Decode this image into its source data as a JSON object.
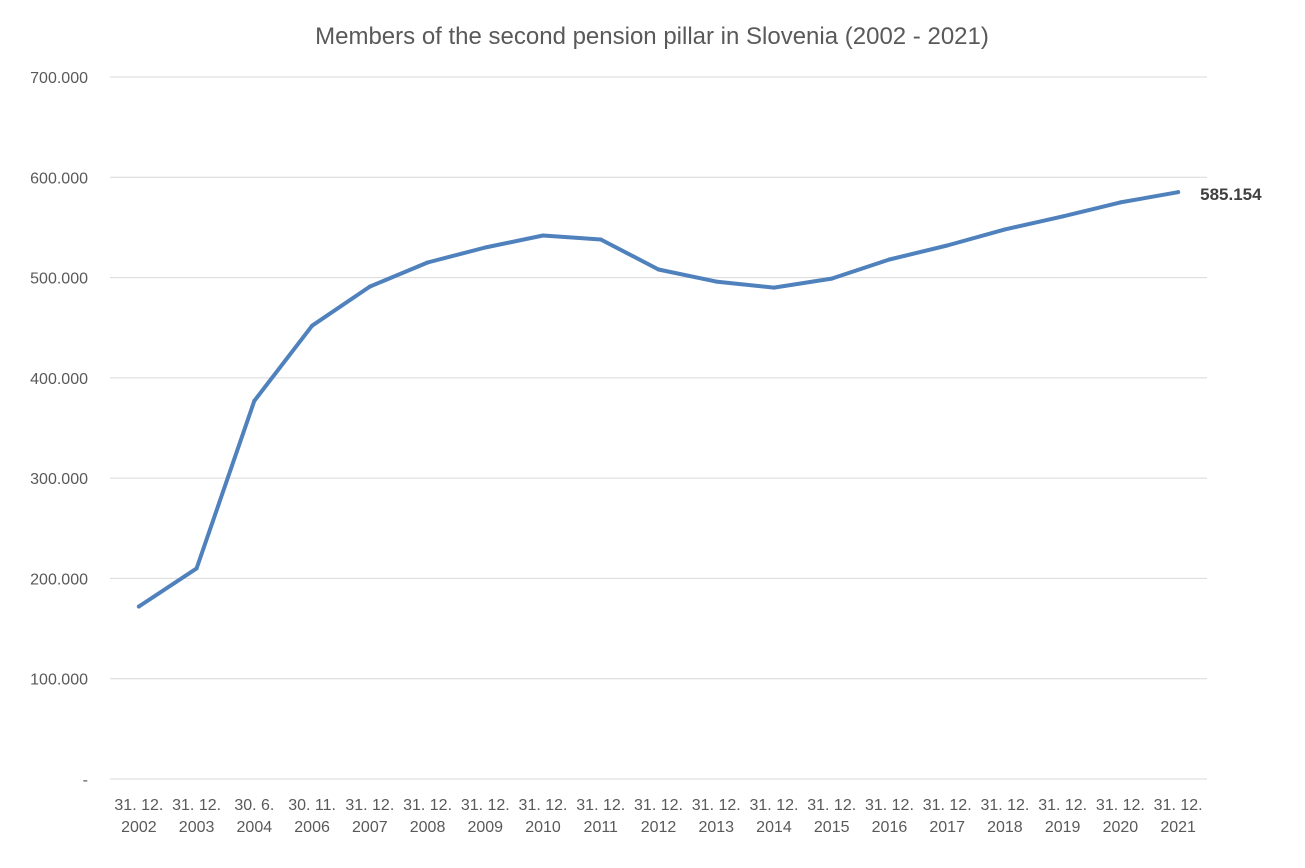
{
  "chart_data": {
    "type": "line",
    "title": "Members of the second pension pillar in Slovenia (2002 - 2021)",
    "xlabel": "",
    "ylabel": "",
    "ylim": [
      0,
      700000
    ],
    "yticks": [
      0,
      100000,
      200000,
      300000,
      400000,
      500000,
      600000,
      700000
    ],
    "ytick_labels": [
      "-",
      "100.000",
      "200.000",
      "300.000",
      "400.000",
      "500.000",
      "600.000",
      "700.000"
    ],
    "grid": true,
    "legend": "none",
    "categories": [
      [
        "31. 12.",
        "2002"
      ],
      [
        "31. 12.",
        "2003"
      ],
      [
        "30. 6.",
        "2004"
      ],
      [
        "30. 11.",
        "2006"
      ],
      [
        "31. 12.",
        "2007"
      ],
      [
        "31. 12.",
        "2008"
      ],
      [
        "31. 12.",
        "2009"
      ],
      [
        "31. 12.",
        "2010"
      ],
      [
        "31. 12.",
        "2011"
      ],
      [
        "31. 12.",
        "2012"
      ],
      [
        "31. 12.",
        "2013"
      ],
      [
        "31. 12.",
        "2014"
      ],
      [
        "31. 12.",
        "2015"
      ],
      [
        "31. 12.",
        "2016"
      ],
      [
        "31. 12.",
        "2017"
      ],
      [
        "31. 12.",
        "2018"
      ],
      [
        "31. 12.",
        "2019"
      ],
      [
        "31. 12.",
        "2020"
      ],
      [
        "31. 12.",
        "2021"
      ]
    ],
    "series": [
      {
        "color": "#4f81bd",
        "values": [
          172000,
          210000,
          377000,
          452000,
          491000,
          515000,
          530000,
          542000,
          538000,
          508000,
          496000,
          490000,
          499000,
          518000,
          532000,
          548000,
          561000,
          575000,
          585154
        ]
      }
    ],
    "data_labels": [
      {
        "index": 18,
        "text": "585.154"
      }
    ]
  }
}
